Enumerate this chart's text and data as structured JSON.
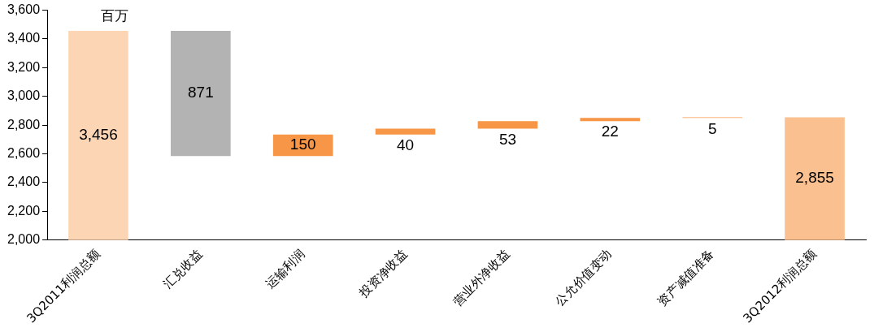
{
  "chart_data": {
    "type": "bar",
    "categories": [
      "3Q2011利润总额",
      "汇兑收益",
      "运输利润",
      "投资净收益",
      "营业外净收益",
      "公允价值变动",
      "资产减值准备",
      "3Q2012利润总额"
    ],
    "values": [
      3456,
      871,
      150,
      40,
      53,
      22,
      5,
      2855
    ],
    "base": [
      null,
      2585,
      2585,
      2735,
      2775,
      2828,
      2850,
      null
    ],
    "colors": [
      "#fcd5b4",
      "#b3b3b3",
      "#f79646",
      "#f79646",
      "#f79646",
      "#f79646",
      "#f79646",
      "#fac090"
    ],
    "value_labels": [
      "3,456",
      "871",
      "150",
      "40",
      "53",
      "22",
      "5",
      "2,855"
    ],
    "ylim": [
      2000,
      3600
    ],
    "yticks": [
      {
        "value": 2000,
        "label": "2,000"
      },
      {
        "value": 2200,
        "label": "2,200"
      },
      {
        "value": 2400,
        "label": "2,400"
      },
      {
        "value": 2600,
        "label": "2,600"
      },
      {
        "value": 2800,
        "label": "2,800"
      },
      {
        "value": 3000,
        "label": "3,000"
      },
      {
        "value": 3200,
        "label": "3,200"
      },
      {
        "value": 3400,
        "label": "3,400"
      },
      {
        "value": 3600,
        "label": "3,600"
      }
    ],
    "annotations": [
      "百万"
    ],
    "grid": false,
    "legend": false
  }
}
